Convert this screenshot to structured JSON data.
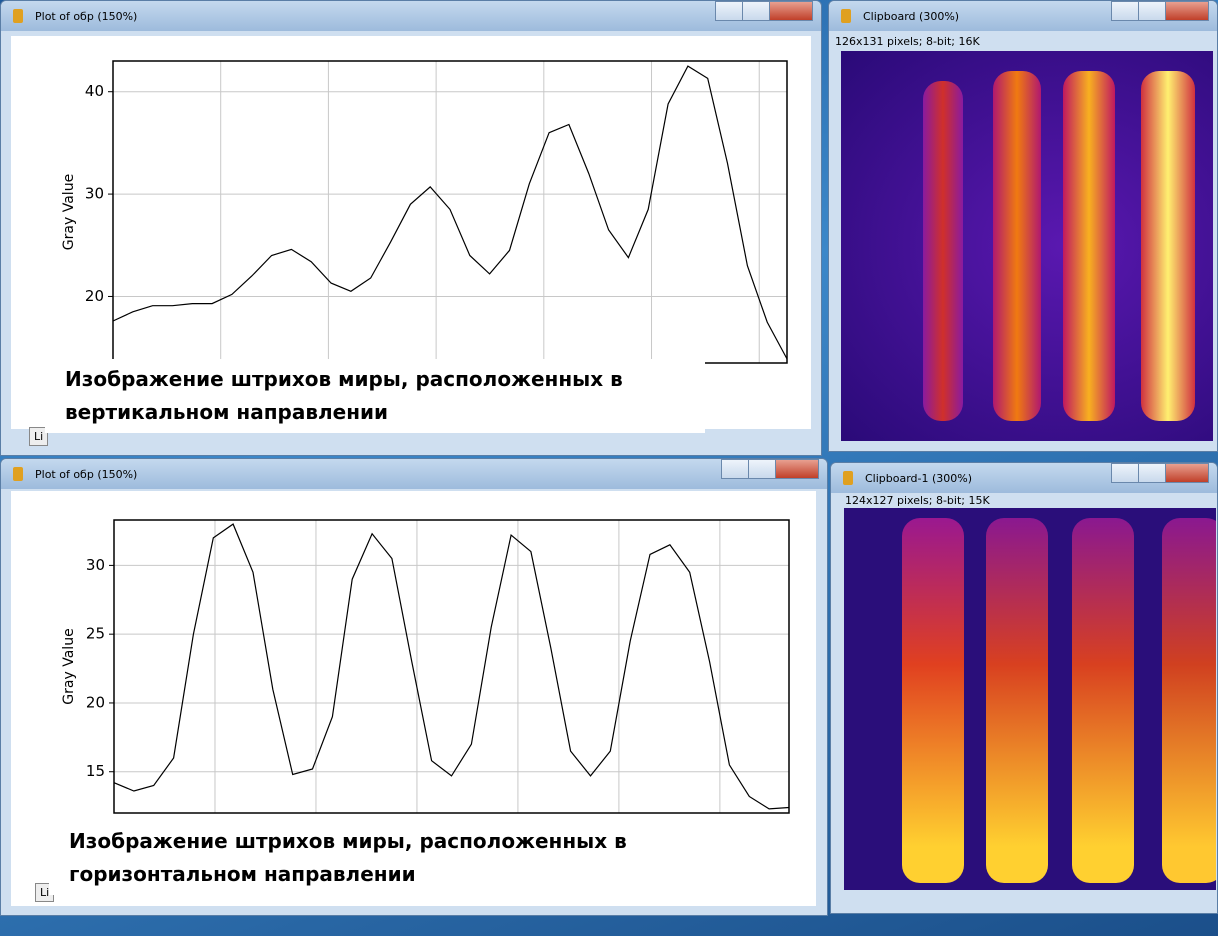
{
  "windows": [
    {
      "title": "Plot of обр (150%)",
      "button": "Li",
      "caption": [
        "Изображение штрихов миры, расположенных в",
        "вертикальном направлении"
      ]
    },
    {
      "title": "Plot of обр (150%)",
      "button": "Li",
      "caption": [
        "Изображение штрихов миры, расположенных в",
        "горизонтальном направлении"
      ]
    }
  ],
  "images": [
    {
      "title": "Clipboard (300%)",
      "info": "126x131 pixels; 8-bit; 16K"
    },
    {
      "title": "Clipboard-1 (300%)",
      "info": "124x127 pixels; 8-bit; 15K"
    }
  ],
  "chart_data": [
    {
      "type": "line",
      "y_label": "Gray Value",
      "color": "#000000",
      "grid": true,
      "ylim": [
        13.5,
        43
      ],
      "yticks": [
        20,
        30,
        40
      ],
      "values": [
        17.6,
        18.5,
        19.1,
        19.1,
        19.3,
        19.3,
        20.2,
        22.0,
        24.0,
        24.6,
        23.4,
        21.3,
        20.5,
        21.8,
        25.3,
        29.0,
        30.7,
        28.5,
        24.0,
        22.2,
        24.5,
        31.0,
        36.0,
        36.8,
        32.0,
        26.5,
        23.8,
        28.5,
        38.8,
        42.5,
        41.3,
        33.0,
        23.0,
        17.5,
        13.9
      ]
    },
    {
      "type": "line",
      "y_label": "Gray Value",
      "color": "#000000",
      "grid": true,
      "ylim": [
        12,
        33.3
      ],
      "yticks": [
        15,
        20,
        25,
        30
      ],
      "values": [
        14.2,
        13.6,
        14.0,
        16.0,
        25.0,
        32.0,
        33.0,
        29.5,
        21.0,
        14.8,
        15.2,
        19.0,
        29.0,
        32.3,
        30.5,
        23.0,
        15.8,
        14.7,
        17.0,
        25.5,
        32.2,
        31.0,
        24.0,
        16.5,
        14.7,
        16.5,
        24.5,
        30.8,
        31.5,
        29.5,
        23.0,
        15.5,
        13.2,
        12.3,
        12.4
      ]
    }
  ]
}
